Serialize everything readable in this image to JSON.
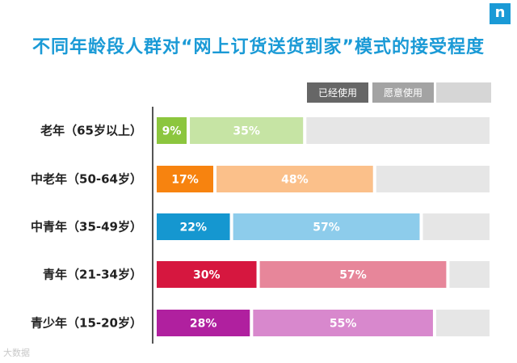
{
  "page": {
    "title": "不同年龄段人群对“网上订货送货到家”模式的接受程度",
    "logo_text": "n",
    "watermark": "大数据"
  },
  "colors": {
    "title": "#1a9ad6",
    "remainder_bar": "#e6e6e6",
    "legend_used": "#666666",
    "legend_willing": "#a3a3a3",
    "legend_other": "#d6d6d6"
  },
  "chart_data": {
    "type": "bar",
    "orientation": "horizontal",
    "stacked": true,
    "categories": [
      "老年（65岁以上）",
      "中老年（50-64岁）",
      "中青年（35-49岁）",
      "青年（21-34岁）",
      "青少年（15-20岁）"
    ],
    "series": [
      {
        "name": "已经使用",
        "values": [
          9,
          17,
          22,
          30,
          28
        ],
        "labels": [
          "9%",
          "17%",
          "22%",
          "30%",
          "28%"
        ]
      },
      {
        "name": "愿意使用",
        "values": [
          35,
          48,
          57,
          57,
          55
        ],
        "labels": [
          "35%",
          "48%",
          "57%",
          "57%",
          "55%"
        ]
      }
    ],
    "bar_colors": [
      {
        "used": "#8cc63e",
        "willing": "#c6e4a4"
      },
      {
        "used": "#f7830f",
        "willing": "#fbc08a"
      },
      {
        "used": "#1597d0",
        "willing": "#8dcceb"
      },
      {
        "used": "#d6173f",
        "willing": "#e7869a"
      },
      {
        "used": "#b0209f",
        "willing": "#d888cd"
      }
    ],
    "xlim": [
      0,
      100
    ],
    "legend": [
      "已经使用",
      "愿意使用",
      ""
    ],
    "legend_position": "top-right",
    "grid": false
  }
}
